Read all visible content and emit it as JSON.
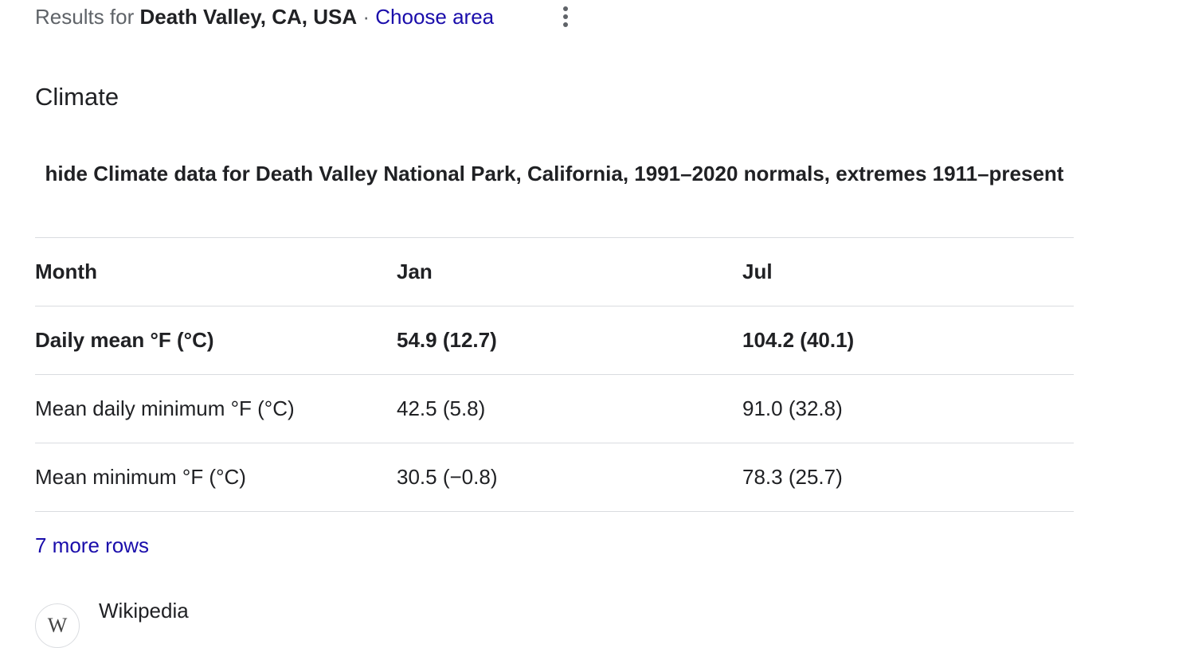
{
  "header": {
    "prefix": "Results for",
    "location": "Death Valley, CA, USA",
    "separator": "·",
    "choose_area": "Choose area"
  },
  "section_title": "Climate",
  "table": {
    "caption_toggle": "hide",
    "caption": "Climate data for Death Valley National Park, California, 1991–2020 normals, extremes 1911–present",
    "columns": [
      "Month",
      "Jan",
      "Jul"
    ],
    "rows": [
      [
        "Daily mean °F (°C)",
        "54.9 (12.7)",
        "104.2 (40.1)"
      ],
      [
        "Mean daily minimum °F (°C)",
        "42.5 (5.8)",
        "91.0 (32.8)"
      ],
      [
        "Mean minimum °F (°C)",
        "30.5 (−0.8)",
        "78.3 (25.7)"
      ]
    ],
    "more_rows": "7 more rows"
  },
  "source": {
    "icon": "W",
    "name": "Wikipedia"
  }
}
